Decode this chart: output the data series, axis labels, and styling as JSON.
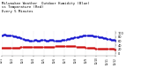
{
  "title": "Milwaukee Weather  Outdoor Humidity (Blue)\nvs Temperature (Red)\nEvery 5 Minutes",
  "title_fontsize": 2.8,
  "ylim": [
    -10,
    110
  ],
  "yticks": [
    0,
    20,
    40,
    60,
    80,
    100
  ],
  "ytick_labels": [
    "0",
    "20",
    "40",
    "60",
    "80",
    "100"
  ],
  "ytick_fontsize": 2.5,
  "xtick_fontsize": 2.0,
  "humidity_color": "#0000cc",
  "temperature_color": "#cc0000",
  "background_color": "#ffffff",
  "grid_color": "#bbbbbb",
  "num_points": 120,
  "humidity_values": [
    88,
    89,
    90,
    90,
    90,
    89,
    89,
    88,
    88,
    87,
    87,
    86,
    85,
    84,
    83,
    82,
    81,
    80,
    79,
    78,
    76,
    74,
    72,
    70,
    68,
    66,
    65,
    65,
    64,
    63,
    62,
    61,
    62,
    63,
    64,
    65,
    64,
    63,
    63,
    62,
    63,
    64,
    65,
    66,
    65,
    64,
    63,
    62,
    62,
    63,
    64,
    65,
    66,
    65,
    64,
    63,
    62,
    61,
    60,
    60,
    61,
    62,
    63,
    64,
    65,
    66,
    67,
    68,
    69,
    70,
    71,
    72,
    73,
    74,
    75,
    76,
    77,
    78,
    79,
    80,
    81,
    82,
    83,
    84,
    85,
    86,
    86,
    87,
    87,
    88,
    88,
    88,
    87,
    87,
    86,
    86,
    85,
    85,
    84,
    83,
    82,
    81,
    80,
    79,
    78,
    77,
    76,
    75,
    74,
    73,
    72,
    71,
    70,
    69,
    68,
    67,
    66,
    65,
    64,
    63
  ],
  "temperature_values": [
    28,
    28,
    28,
    28,
    27,
    27,
    27,
    27,
    27,
    27,
    27,
    27,
    27,
    27,
    27,
    27,
    28,
    28,
    29,
    29,
    30,
    30,
    30,
    30,
    30,
    30,
    30,
    30,
    30,
    30,
    30,
    30,
    30,
    31,
    31,
    31,
    32,
    32,
    32,
    32,
    32,
    32,
    32,
    32,
    32,
    32,
    32,
    32,
    32,
    32,
    33,
    33,
    33,
    33,
    33,
    33,
    34,
    34,
    34,
    34,
    34,
    34,
    34,
    34,
    34,
    34,
    34,
    34,
    34,
    34,
    34,
    34,
    34,
    34,
    34,
    34,
    34,
    34,
    33,
    33,
    33,
    32,
    32,
    32,
    31,
    31,
    30,
    30,
    29,
    29,
    28,
    28,
    27,
    27,
    26,
    26,
    26,
    26,
    25,
    25,
    25,
    25,
    25,
    25,
    24,
    24,
    24,
    23,
    23,
    23,
    22,
    22,
    22,
    22,
    21,
    21,
    21,
    21,
    20,
    20
  ],
  "xtick_positions": [
    0,
    11,
    22,
    33,
    44,
    55,
    66,
    77,
    88,
    99,
    110,
    119
  ],
  "xtick_labels": [
    "12/1",
    "12/2",
    "12/3",
    "12/4",
    "12/5",
    "12/6",
    "12/7",
    "12/8",
    "12/9",
    "12/10",
    "12/11",
    "12/12"
  ]
}
